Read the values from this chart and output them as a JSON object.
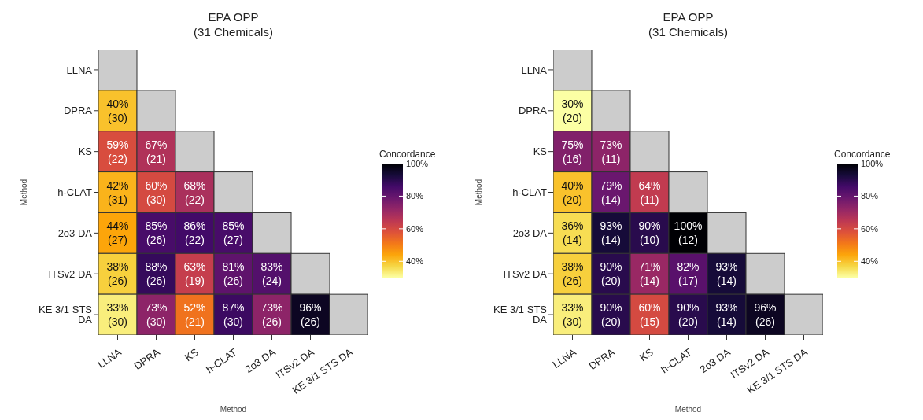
{
  "chart_data": [
    {
      "type": "heatmap",
      "title": "EPA OPP\n(31 Chemicals)",
      "xlabel": "Method",
      "ylabel": "Method",
      "clabel": "Concordance",
      "categories": [
        "LLNA",
        "DPRA",
        "KS",
        "h-CLAT",
        "2o3 DA",
        "ITSv2 DA",
        "KE 3/1 STS DA"
      ],
      "y_categories": [
        "LLNA",
        "DPRA",
        "KS",
        "h-CLAT",
        "2o3 DA",
        "ITSv2 DA",
        "KE 3/1 STS DA"
      ],
      "cells": [
        [
          null,
          null,
          null,
          null,
          null,
          null,
          null
        ],
        [
          40,
          null,
          null,
          null,
          null,
          null,
          null
        ],
        [
          59,
          67,
          null,
          null,
          null,
          null,
          null
        ],
        [
          42,
          60,
          68,
          null,
          null,
          null,
          null
        ],
        [
          44,
          85,
          86,
          85,
          null,
          null,
          null
        ],
        [
          38,
          88,
          63,
          81,
          83,
          null,
          null
        ],
        [
          33,
          73,
          52,
          87,
          73,
          96,
          null
        ]
      ],
      "cell_labels": [
        [
          null,
          null,
          null,
          null,
          null,
          null,
          null
        ],
        [
          "40%\n(30)",
          null,
          null,
          null,
          null,
          null,
          null
        ],
        [
          "59%\n(22)",
          "67%\n(21)",
          null,
          null,
          null,
          null,
          null
        ],
        [
          "42%\n(31)",
          "60%\n(30)",
          "68%\n(22)",
          null,
          null,
          null,
          null
        ],
        [
          "44%\n(27)",
          "85%\n(26)",
          "86%\n(22)",
          "85%\n(27)",
          null,
          null,
          null
        ],
        [
          "38%\n(26)",
          "88%\n(26)",
          "63%\n(19)",
          "81%\n(26)",
          "83%\n(24)",
          null,
          null
        ],
        [
          "33%\n(30)",
          "73%\n(30)",
          "52%\n(21)",
          "87%\n(30)",
          "73%\n(26)",
          "96%\n(26)",
          null
        ]
      ],
      "clim": [
        30,
        100
      ],
      "cticks": [
        {
          "value": 40,
          "label": "40%"
        },
        {
          "value": 60,
          "label": "60%"
        },
        {
          "value": 80,
          "label": "80%"
        },
        {
          "value": 100,
          "label": "100%"
        }
      ]
    },
    {
      "type": "heatmap",
      "title": "EPA OPP\n(31 Chemicals)",
      "xlabel": "Method",
      "ylabel": "Method",
      "clabel": "Concordance",
      "categories": [
        "LLNA",
        "DPRA",
        "KS",
        "h-CLAT",
        "2o3 DA",
        "ITSv2 DA",
        "KE 3/1 STS DA"
      ],
      "y_categories": [
        "LLNA",
        "DPRA",
        "KS",
        "h-CLAT",
        "2o3 DA",
        "ITSv2 DA",
        "KE 3/1 STS DA"
      ],
      "cells": [
        [
          null,
          null,
          null,
          null,
          null,
          null,
          null
        ],
        [
          30,
          null,
          null,
          null,
          null,
          null,
          null
        ],
        [
          75,
          73,
          null,
          null,
          null,
          null,
          null
        ],
        [
          40,
          79,
          64,
          null,
          null,
          null,
          null
        ],
        [
          36,
          93,
          90,
          100,
          null,
          null,
          null
        ],
        [
          38,
          90,
          71,
          82,
          93,
          null,
          null
        ],
        [
          33,
          90,
          60,
          90,
          93,
          96,
          null
        ]
      ],
      "cell_labels": [
        [
          null,
          null,
          null,
          null,
          null,
          null,
          null
        ],
        [
          "30%\n(20)",
          null,
          null,
          null,
          null,
          null,
          null
        ],
        [
          "75%\n(16)",
          "73%\n(11)",
          null,
          null,
          null,
          null,
          null
        ],
        [
          "40%\n(20)",
          "79%\n(14)",
          "64%\n(11)",
          null,
          null,
          null,
          null
        ],
        [
          "36%\n(14)",
          "93%\n(14)",
          "90%\n(10)",
          "100%\n(12)",
          null,
          null,
          null
        ],
        [
          "38%\n(26)",
          "90%\n(20)",
          "71%\n(14)",
          "82%\n(17)",
          "93%\n(14)",
          null,
          null
        ],
        [
          "33%\n(30)",
          "90%\n(20)",
          "60%\n(15)",
          "90%\n(20)",
          "93%\n(14)",
          "96%\n(26)",
          null
        ]
      ],
      "clim": [
        30,
        100
      ],
      "cticks": [
        {
          "value": 40,
          "label": "40%"
        },
        {
          "value": 60,
          "label": "60%"
        },
        {
          "value": 80,
          "label": "80%"
        },
        {
          "value": 100,
          "label": "100%"
        }
      ]
    }
  ]
}
